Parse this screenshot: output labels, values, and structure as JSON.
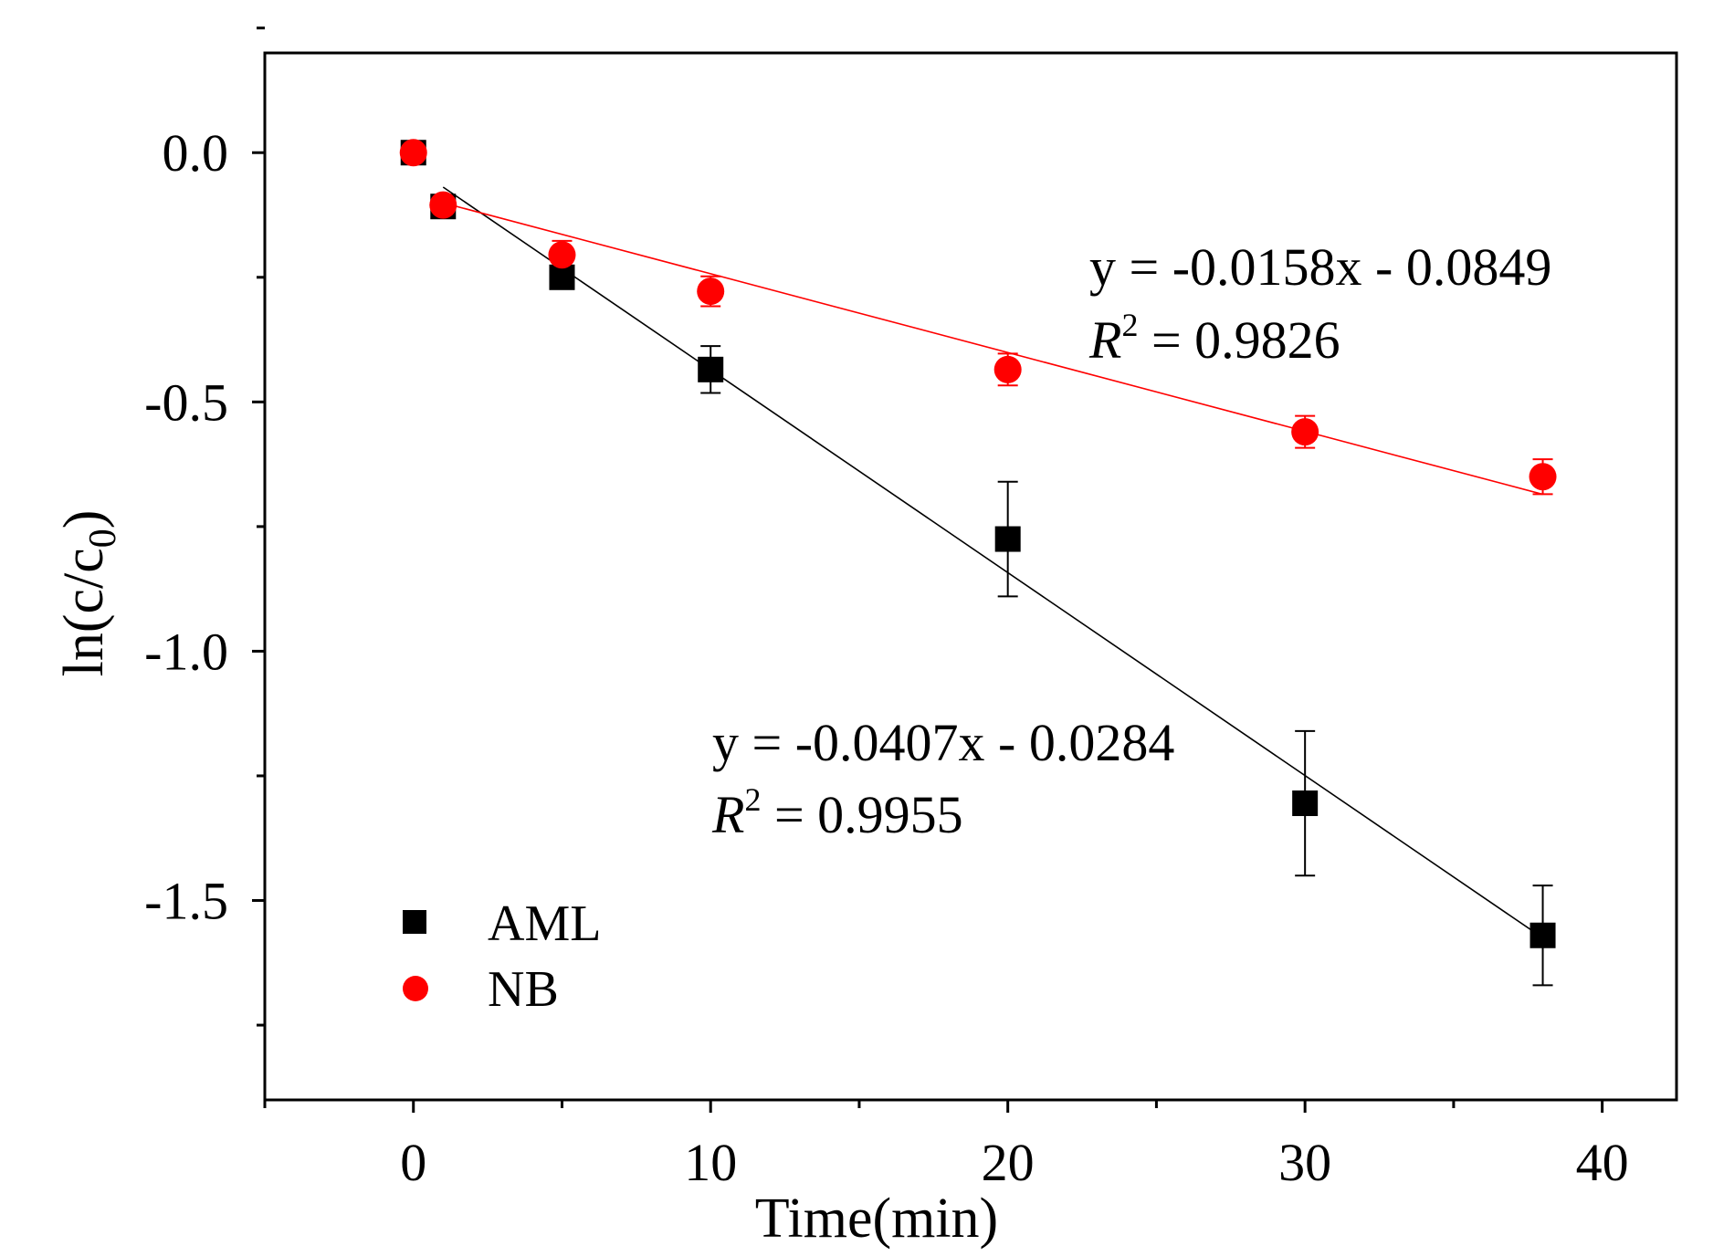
{
  "chart_data": {
    "type": "scatter",
    "title": "",
    "xlabel": "Time(min)",
    "ylabel": "ln(c/c",
    "ylabel_sub": "0",
    "ylabel_close": ")",
    "xlim": [
      -5,
      42.5
    ],
    "ylim": [
      -1.9,
      0.2
    ],
    "xticks": [
      {
        "value": 0,
        "label": "0"
      },
      {
        "value": 10,
        "label": "10"
      },
      {
        "value": 20,
        "label": "20"
      },
      {
        "value": 30,
        "label": "30"
      },
      {
        "value": 40,
        "label": "40"
      }
    ],
    "xminor": [
      -5,
      5,
      15,
      25,
      35
    ],
    "yticks": [
      {
        "value": 0.0,
        "label": "0.0"
      },
      {
        "value": -0.5,
        "label": "-0.5"
      },
      {
        "value": -1.0,
        "label": "-1.0"
      },
      {
        "value": -1.5,
        "label": "-1.5"
      }
    ],
    "yminor": [
      0.25,
      -0.25,
      -0.75,
      -1.25,
      -1.75
    ],
    "series": [
      {
        "name": "AML",
        "marker": "square",
        "color": "#000000",
        "x": [
          0,
          1,
          5,
          10,
          20,
          30,
          38
        ],
        "y": [
          0.0,
          -0.108,
          -0.25,
          -0.435,
          -0.775,
          -1.305,
          -1.57
        ],
        "err": [
          0.012,
          0.02,
          0.02,
          0.047,
          0.115,
          0.145,
          0.1
        ],
        "fit": {
          "slope": -0.0407,
          "intercept": -0.0284,
          "x_range": [
            1,
            38
          ]
        },
        "equation": "y = -0.0407x - 0.0284",
        "r2_label": "R",
        "r2_sup": "2",
        "r2_value": " = 0.9955"
      },
      {
        "name": "NB",
        "marker": "circle",
        "color": "#ff0000",
        "x": [
          0,
          1,
          5,
          10,
          20,
          30,
          38
        ],
        "y": [
          0.0,
          -0.105,
          -0.205,
          -0.278,
          -0.435,
          -0.56,
          -0.65
        ],
        "err": [
          0.01,
          0.02,
          0.028,
          0.03,
          0.032,
          0.032,
          0.035
        ],
        "fit": {
          "slope": -0.0158,
          "intercept": -0.0849,
          "x_range": [
            1,
            38
          ]
        },
        "equation": "y = -0.0158x - 0.0849",
        "r2_label": "R",
        "r2_sup": "2",
        "r2_value": " = 0.9826"
      }
    ],
    "legend": {
      "position": "bottom-left",
      "entries": [
        "AML",
        "NB"
      ]
    }
  }
}
